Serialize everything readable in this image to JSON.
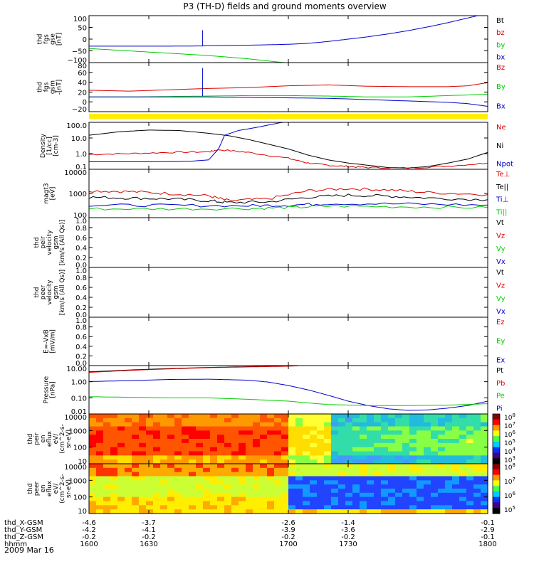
{
  "title": "P3 (TH-D) fields and ground moments overview",
  "date": "2009 Mar 16",
  "colors": {
    "black": "#000000",
    "red": "#dd0000",
    "green": "#00cc00",
    "blue": "#0000cc",
    "yellow": "#ffee00",
    "darkred": "#990000"
  },
  "chart_data": [
    {
      "type": "line",
      "id": "fgs_gse",
      "ylabel": [
        "thd",
        "fgs",
        "gse",
        "[nT]"
      ],
      "yticks": [
        "100",
        "50",
        "0",
        "−50",
        "−100"
      ],
      "ylim": [
        -100,
        100
      ],
      "log": false,
      "legend": [
        {
          "name": "Bt",
          "color": "black"
        },
        {
          "name": "bz",
          "color": "red"
        },
        {
          "name": "by",
          "color": "green"
        },
        {
          "name": "bx",
          "color": "blue"
        }
      ],
      "series": [
        {
          "name": "bx",
          "color": "blue",
          "x": [
            1600,
            1620,
            1640,
            1657,
            1660,
            1680,
            1690,
            1700,
            1710,
            1720,
            1730,
            1740,
            1750,
            1760,
            1770,
            1780,
            1790,
            1795,
            1800
          ],
          "y": [
            -30,
            -30,
            -30,
            -29,
            -28,
            -26,
            -24,
            -22,
            -18,
            -10,
            0,
            10,
            22,
            36,
            52,
            70,
            90,
            100,
            110
          ]
        },
        {
          "name": "by",
          "color": "green",
          "x": [
            1600,
            1620,
            1640,
            1660,
            1680,
            1690,
            1700
          ],
          "y": [
            -40,
            -50,
            -60,
            -70,
            -84,
            -93,
            -102
          ]
        }
      ]
    },
    {
      "type": "line",
      "id": "fgs_gsm",
      "ylabel": [
        "thd",
        "fgs",
        "gsm",
        "-[nT]"
      ],
      "yticks": [
        "80",
        "60",
        "40",
        "20",
        "0",
        "−20"
      ],
      "ylim": [
        -30,
        80
      ],
      "log": false,
      "legend": [
        {
          "name": "Bz",
          "color": "red"
        },
        {
          "name": "By",
          "color": "green"
        },
        {
          "name": "Bx",
          "color": "blue"
        }
      ],
      "series": [
        {
          "name": "Bz",
          "color": "red",
          "x": [
            1600,
            1620,
            1640,
            1660,
            1680,
            1700,
            1720,
            1740,
            1760,
            1780,
            1790,
            1800
          ],
          "y": [
            18,
            16,
            19,
            22,
            24,
            28,
            30,
            27,
            26,
            26,
            28,
            35
          ]
        },
        {
          "name": "By",
          "color": "green",
          "x": [
            1600,
            1620,
            1640,
            1660,
            1680,
            1700,
            1720,
            1740,
            1760,
            1780,
            1800
          ],
          "y": [
            3,
            3,
            4,
            5,
            6,
            6,
            5,
            3,
            3,
            6,
            9
          ]
        },
        {
          "name": "Bx",
          "color": "blue",
          "x": [
            1600,
            1620,
            1640,
            1660,
            1680,
            1700,
            1720,
            1740,
            1760,
            1780,
            1790,
            1800
          ],
          "y": [
            3,
            3,
            3,
            3,
            2,
            1,
            0,
            -3,
            -6,
            -9,
            -12,
            -18
          ]
        }
      ]
    },
    {
      "type": "line",
      "id": "density",
      "ylabel": [
        "Density",
        "[1/cc]",
        "[cm-3]"
      ],
      "yticks": [
        "100.0",
        "10.0",
        "1.0",
        "0.1"
      ],
      "ylim": [
        0.1,
        100
      ],
      "log": true,
      "legend": [
        {
          "name": "Ne",
          "color": "red"
        },
        {
          "name": "Ni",
          "color": "black"
        },
        {
          "name": "Npot",
          "color": "blue"
        }
      ],
      "series": [
        {
          "name": "Ni",
          "color": "black",
          "x": [
            1600,
            1615,
            1630,
            1645,
            1660,
            1670,
            1680,
            1690,
            1700,
            1710,
            1720,
            1730,
            1740,
            1750,
            1760,
            1770,
            1780,
            1790,
            1800
          ],
          "y": [
            15,
            25,
            32,
            30,
            20,
            14,
            8,
            4,
            2,
            0.8,
            0.4,
            0.25,
            0.18,
            0.13,
            0.12,
            0.15,
            0.25,
            0.45,
            1.2
          ]
        },
        {
          "name": "Ne",
          "color": "red",
          "x": [
            1600,
            1620,
            1640,
            1660,
            1665,
            1680,
            1700,
            1710,
            1720,
            1730,
            1740,
            1760,
            1780,
            1800
          ],
          "y": [
            0.9,
            1.0,
            1.2,
            1.3,
            1.8,
            1.2,
            0.5,
            0.25,
            0.18,
            0.15,
            0.13,
            0.12,
            0.16,
            0.25
          ]
        },
        {
          "name": "Npot",
          "color": "blue",
          "x": [
            1600,
            1630,
            1650,
            1660,
            1665,
            1668,
            1675,
            1685,
            1695,
            1703
          ],
          "y": [
            0.3,
            0.3,
            0.32,
            0.4,
            2.0,
            15,
            30,
            50,
            90,
            140
          ]
        }
      ]
    },
    {
      "type": "line",
      "id": "temperature",
      "ylabel": [
        "magt3",
        "[eV]"
      ],
      "yticks": [
        "10000",
        "1000",
        "100"
      ],
      "ylim": [
        100,
        10000
      ],
      "log": true,
      "legend": [
        {
          "name": "Te⊥",
          "color": "red"
        },
        {
          "name": "Te||",
          "color": "black"
        },
        {
          "name": "Ti⊥",
          "color": "blue"
        },
        {
          "name": "Ti||",
          "color": "green"
        }
      ],
      "series": [
        {
          "name": "Te⊥",
          "color": "red",
          "x": [
            1600,
            1620,
            1640,
            1660,
            1670,
            1690,
            1710,
            1730,
            1750,
            1770,
            1800
          ],
          "y": [
            1300,
            1200,
            1000,
            800,
            500,
            600,
            1300,
            1600,
            1400,
            1100,
            900
          ]
        },
        {
          "name": "Te||",
          "color": "black",
          "x": [
            1600,
            1620,
            1640,
            1660,
            1670,
            1690,
            1710,
            1730,
            1750,
            1770,
            1800
          ],
          "y": [
            700,
            650,
            600,
            500,
            420,
            450,
            700,
            850,
            780,
            650,
            550
          ]
        },
        {
          "name": "Ti⊥",
          "color": "blue",
          "x": [
            1600,
            1640,
            1680,
            1700,
            1720,
            1760,
            1800
          ],
          "y": [
            330,
            320,
            310,
            330,
            380,
            370,
            330
          ]
        },
        {
          "name": "Ti||",
          "color": "green",
          "x": [
            1600,
            1640,
            1680,
            1700,
            1720,
            1760,
            1800
          ],
          "y": [
            230,
            230,
            240,
            260,
            300,
            280,
            260
          ]
        }
      ]
    },
    {
      "type": "line",
      "id": "peir_velocity",
      "ylabel": [
        "thd",
        "peir",
        "velocity",
        "gsm",
        "[km/s (All Qs)]"
      ],
      "yticks": [
        "1.0",
        "0.8",
        "0.6",
        "0.4",
        "0.2",
        "0.0"
      ],
      "ylim": [
        0,
        1
      ],
      "log": false,
      "legend": [
        {
          "name": "Vt",
          "color": "black"
        },
        {
          "name": "Vz",
          "color": "red"
        },
        {
          "name": "Vy",
          "color": "green"
        },
        {
          "name": "Vx",
          "color": "blue"
        }
      ],
      "series": []
    },
    {
      "type": "line",
      "id": "peer_velocity",
      "ylabel": [
        "thd",
        "peer",
        "velocity",
        "gsm",
        "[km/s (All Qs)]"
      ],
      "yticks": [
        "1.0",
        "0.8",
        "0.6",
        "0.4",
        "0.2",
        "0.0"
      ],
      "ylim": [
        0,
        1
      ],
      "log": false,
      "legend": [
        {
          "name": "Vt",
          "color": "black"
        },
        {
          "name": "Vz",
          "color": "red"
        },
        {
          "name": "Vy",
          "color": "green"
        },
        {
          "name": "Vx",
          "color": "blue"
        }
      ],
      "series": []
    },
    {
      "type": "line",
      "id": "efield",
      "ylabel": [
        "E=-VxB",
        "[mV/m]"
      ],
      "yticks": [
        "1.0",
        "0.8",
        "0.6",
        "0.4",
        "0.2",
        "0.0"
      ],
      "ylim": [
        0,
        1
      ],
      "log": false,
      "legend": [
        {
          "name": "Ez",
          "color": "red"
        },
        {
          "name": "Ey",
          "color": "green"
        },
        {
          "name": "Ex",
          "color": "blue"
        }
      ],
      "series": []
    },
    {
      "type": "line",
      "id": "pressure",
      "ylabel": [
        "Pressure",
        "[nPa]"
      ],
      "yticks": [
        "10.00",
        "1.00",
        "0.10",
        "0.01"
      ],
      "ylim": [
        0.008,
        16
      ],
      "log": true,
      "legend": [
        {
          "name": "Pt",
          "color": "black"
        },
        {
          "name": "Pb",
          "color": "red"
        },
        {
          "name": "Pe",
          "color": "green"
        },
        {
          "name": "Pi",
          "color": "blue"
        }
      ],
      "series": [
        {
          "name": "Pt",
          "color": "black",
          "x": [
            1600,
            1620,
            1640,
            1660,
            1680,
            1700,
            1705
          ],
          "y": [
            6,
            8,
            10,
            12,
            13.5,
            15,
            16
          ]
        },
        {
          "name": "Pb",
          "color": "red",
          "x": [
            1600,
            1620,
            1640,
            1660,
            1680,
            1700,
            1705
          ],
          "y": [
            5.5,
            7.5,
            9.5,
            11.5,
            13,
            14.5,
            15.5
          ]
        },
        {
          "name": "Pi",
          "color": "blue",
          "x": [
            1600,
            1620,
            1640,
            1660,
            1680,
            1690,
            1700,
            1710,
            1720,
            1730,
            1740,
            1750,
            1760,
            1770,
            1780,
            1790,
            1800
          ],
          "y": [
            1.3,
            1.5,
            1.8,
            1.9,
            1.6,
            1.2,
            0.7,
            0.35,
            0.15,
            0.06,
            0.03,
            0.018,
            0.014,
            0.015,
            0.02,
            0.03,
            0.06
          ]
        },
        {
          "name": "Pe",
          "color": "green",
          "x": [
            1600,
            1620,
            1640,
            1660,
            1680,
            1700,
            1710,
            1720,
            1740,
            1760,
            1780,
            1800
          ],
          "y": [
            0.12,
            0.11,
            0.1,
            0.1,
            0.08,
            0.06,
            0.045,
            0.035,
            0.03,
            0.03,
            0.032,
            0.04
          ]
        }
      ]
    },
    {
      "type": "heatmap",
      "id": "peir_en_eflux",
      "ylabel": [
        "thd",
        "peir",
        "en",
        "eflux",
        "eV/",
        "(cm^2-s-",
        "sr-eV)"
      ],
      "yticks": [
        "10000",
        "1000",
        "100",
        "10"
      ],
      "colorbar": [
        "10^8",
        "10^7",
        "10^6",
        "10^5",
        "10^4",
        "10^3"
      ]
    },
    {
      "type": "heatmap",
      "id": "peer_en_eflux",
      "ylabel": [
        "thd",
        "peer",
        "en",
        "eflux",
        "eV/",
        "(cm^2-s-",
        "sr-eV)"
      ],
      "yticks": [
        "10000",
        "1000",
        "100",
        "10"
      ],
      "colorbar": [
        "10^8",
        "10^7",
        "10^6",
        "10^5"
      ]
    }
  ],
  "xaxis": {
    "tick_values": [
      1600,
      1630,
      1700,
      1730,
      1800
    ],
    "rows": [
      {
        "label": "thd_X-GSM",
        "values": [
          "-4.6",
          "-3.7",
          "-2.6",
          "-1.4",
          "-0.1"
        ]
      },
      {
        "label": "thd_Y-GSM",
        "values": [
          "-4.2",
          "-4.1",
          "-3.9",
          "-3.6",
          "-2.9"
        ]
      },
      {
        "label": "thd_Z-GSM",
        "values": [
          "-0.2",
          "-0.2",
          "-0.2",
          "-0.2",
          "-0.1"
        ]
      },
      {
        "label": "hhmm",
        "values": [
          "1600",
          "1630",
          "1700",
          "1730",
          "1800"
        ]
      }
    ]
  }
}
